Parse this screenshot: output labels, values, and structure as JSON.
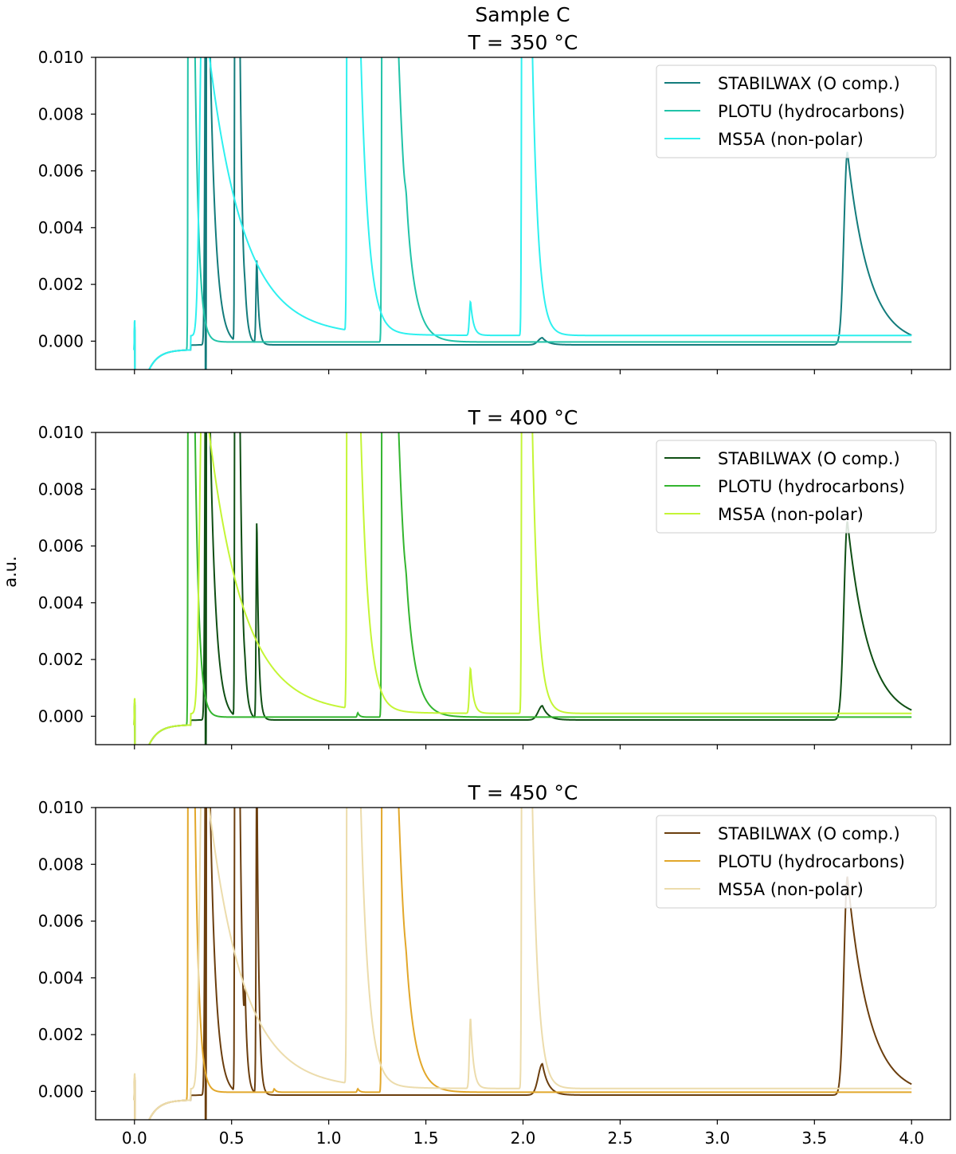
{
  "chart_data": {
    "type": "line",
    "suptitle": "Sample C",
    "ylabel": "a.u.",
    "xlim": [
      -0.2,
      4.2
    ],
    "ylim": [
      -0.001,
      0.01
    ],
    "xticks": [
      0.0,
      0.5,
      1.0,
      1.5,
      2.0,
      2.5,
      3.0,
      3.5,
      4.0
    ],
    "xtick_labels": [
      "0.0",
      "0.5",
      "1.0",
      "1.5",
      "2.0",
      "2.5",
      "3.0",
      "3.5",
      "4.0"
    ],
    "yticks": [
      0.0,
      0.002,
      0.004,
      0.006,
      0.008,
      0.01
    ],
    "ytick_labels": [
      "0.000",
      "0.002",
      "0.004",
      "0.006",
      "0.008",
      "0.010"
    ],
    "legend_position": "top-right",
    "panels": [
      {
        "title": "T = 350 °C",
        "series": [
          {
            "name": "STABILWAX (O comp.)",
            "color": "#137c7c",
            "baseline": -0.00013,
            "startValue": -0.0003,
            "peaks": [
              [
                0.37,
                0.02,
                0.008,
                0.03
              ],
              [
                0.52,
                0.05,
                0.004,
                0.015
              ],
              [
                0.57,
                0.0003,
                0.006,
                0.01
              ],
              [
                0.63,
                0.003,
                0.006,
                0.01
              ],
              [
                2.1,
                0.00025,
                0.03,
                0.03
              ],
              [
                3.67,
                0.0068,
                0.025,
                0.11
              ]
            ],
            "onsets": [
              [
                0.365,
                -0.02
              ],
              [
                3.62,
                -0.00013
              ]
            ]
          },
          {
            "name": "PLOTU (hydrocarbons)",
            "color": "#21c3a8",
            "baseline": -3e-05,
            "startValue": -0.0003,
            "peaks": [
              [
                0.28,
                0.05,
                0.004,
                0.02
              ],
              [
                1.28,
                0.05,
                0.006,
                0.05
              ],
              [
                1.4,
                0.0006,
                0.01,
                0.015
              ]
            ],
            "onsets": [
              [
                0.278,
                -0.0006
              ]
            ]
          },
          {
            "name": "MS5A (non-polar)",
            "color": "#2ef0ef",
            "baseline": 0.0002,
            "startValue": -0.0003,
            "peaks": [
              [
                0.35,
                0.012,
                0.02,
                0.18
              ],
              [
                1.1,
                0.05,
                0.006,
                0.04
              ],
              [
                1.73,
                0.0012,
                0.008,
                0.015
              ],
              [
                2.0,
                0.05,
                0.006,
                0.03
              ]
            ],
            "onsets": [
              [
                1.085,
                0.0003
              ],
              [
                1.99,
                0.0002
              ]
            ]
          }
        ]
      },
      {
        "title": "T = 400 °C",
        "series": [
          {
            "name": "STABILWAX (O comp.)",
            "color": "#0f4f14",
            "baseline": -0.00013,
            "startValue": -0.0003,
            "peaks": [
              [
                0.37,
                0.02,
                0.008,
                0.03
              ],
              [
                0.52,
                0.05,
                0.004,
                0.015
              ],
              [
                0.57,
                0.0003,
                0.006,
                0.01
              ],
              [
                0.63,
                0.0071,
                0.005,
                0.01
              ],
              [
                2.1,
                0.0005,
                0.03,
                0.03
              ],
              [
                3.67,
                0.007,
                0.025,
                0.11
              ]
            ],
            "onsets": [
              [
                0.365,
                -0.02
              ],
              [
                3.62,
                -0.00013
              ]
            ]
          },
          {
            "name": "PLOTU (hydrocarbons)",
            "color": "#33b52f",
            "baseline": -3e-05,
            "startValue": -0.0003,
            "peaks": [
              [
                0.28,
                0.05,
                0.004,
                0.02
              ],
              [
                1.15,
                0.00015,
                0.005,
                0.01
              ],
              [
                1.28,
                0.05,
                0.006,
                0.05
              ],
              [
                1.4,
                0.0004,
                0.01,
                0.015
              ]
            ],
            "onsets": [
              [
                0.278,
                -0.0006
              ]
            ]
          },
          {
            "name": "MS5A (non-polar)",
            "color": "#c4f535",
            "baseline": 0.0001,
            "startValue": -0.0003,
            "peaks": [
              [
                0.35,
                0.012,
                0.02,
                0.18
              ],
              [
                1.1,
                0.05,
                0.006,
                0.04
              ],
              [
                1.73,
                0.0016,
                0.008,
                0.015
              ],
              [
                2.0,
                0.05,
                0.006,
                0.03
              ]
            ],
            "onsets": [
              [
                1.085,
                0.0003
              ],
              [
                1.99,
                0.0002
              ]
            ]
          }
        ]
      },
      {
        "title": "T = 450 °C",
        "series": [
          {
            "name": "STABILWAX (O comp.)",
            "color": "#6b3e0e",
            "baseline": -0.00013,
            "startValue": -0.0003,
            "peaks": [
              [
                0.37,
                0.02,
                0.008,
                0.03
              ],
              [
                0.52,
                0.05,
                0.004,
                0.015
              ],
              [
                0.57,
                0.0019,
                0.005,
                0.01
              ],
              [
                0.63,
                0.012,
                0.005,
                0.01
              ],
              [
                2.1,
                0.0011,
                0.03,
                0.03
              ],
              [
                3.67,
                0.0077,
                0.025,
                0.11
              ]
            ],
            "onsets": [
              [
                0.365,
                -0.02
              ],
              [
                3.62,
                -0.00013
              ]
            ]
          },
          {
            "name": "PLOTU (hydrocarbons)",
            "color": "#e2a72a",
            "baseline": -3e-05,
            "startValue": -0.0003,
            "peaks": [
              [
                0.28,
                0.05,
                0.004,
                0.02
              ],
              [
                0.72,
                0.00012,
                0.005,
                0.01
              ],
              [
                1.15,
                0.00012,
                0.005,
                0.01
              ],
              [
                1.28,
                0.05,
                0.006,
                0.05
              ],
              [
                1.4,
                0.0003,
                0.01,
                0.015
              ]
            ],
            "onsets": [
              [
                0.278,
                -0.0006
              ]
            ]
          },
          {
            "name": "MS5A (non-polar)",
            "color": "#ecdcac",
            "baseline": 0.0001,
            "startValue": -0.0003,
            "peaks": [
              [
                0.35,
                0.012,
                0.02,
                0.18
              ],
              [
                1.1,
                0.05,
                0.006,
                0.04
              ],
              [
                1.73,
                0.0025,
                0.008,
                0.015
              ],
              [
                2.0,
                0.05,
                0.006,
                0.03
              ]
            ],
            "onsets": [
              [
                1.085,
                0.0003
              ],
              [
                1.99,
                0.0002
              ]
            ]
          }
        ]
      }
    ]
  }
}
